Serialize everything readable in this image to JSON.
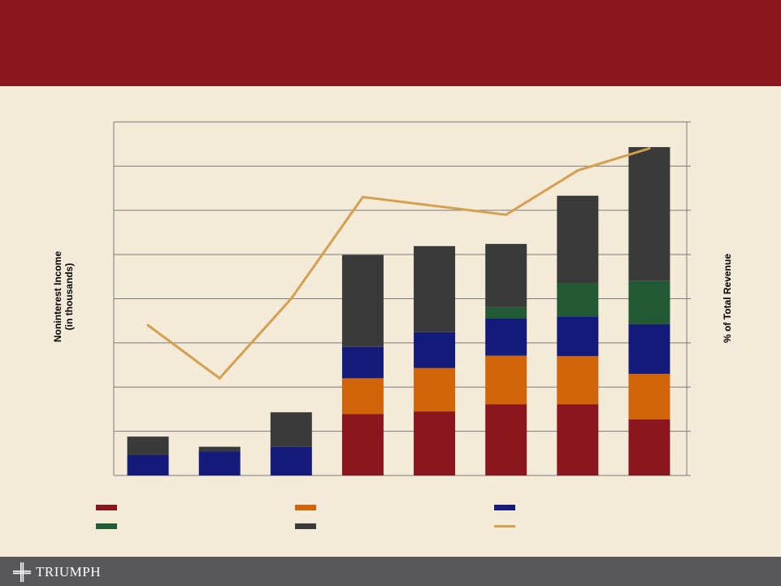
{
  "header": {
    "title": ""
  },
  "chart_data": {
    "type": "bar",
    "stacked": true,
    "categories": [
      "",
      "",
      "",
      "",
      "",
      "",
      "",
      ""
    ],
    "ylabel": "Noninterest Income\n(in thousands)",
    "y2label": "% of Total Revenue",
    "grid": true,
    "legend_position": "bottom",
    "series": [
      {
        "color": "#8b161d",
        "values": [
          0,
          0,
          0,
          1.39,
          1.45,
          1.61,
          1.61,
          1.27
        ]
      },
      {
        "color": "#d2650a",
        "values": [
          0,
          0,
          0,
          0.81,
          0.98,
          1.1,
          1.09,
          1.03
        ]
      },
      {
        "color": "#141b7a",
        "values": [
          0.46,
          0.55,
          0.65,
          0.71,
          0.81,
          0.84,
          0.9,
          1.12
        ]
      },
      {
        "color": "#215a34",
        "values": [
          0,
          0,
          0,
          0,
          0,
          0.26,
          0.75,
          0.98
        ]
      },
      {
        "color": "#3a3a3a",
        "values": [
          0.42,
          0.1,
          0.78,
          2.08,
          1.95,
          1.43,
          1.98,
          3.03
        ]
      }
    ],
    "line": {
      "color": "#d4a050",
      "axis": "secondary",
      "values": [
        3.4,
        2.2,
        4.0,
        6.3,
        6.1,
        5.9,
        6.9,
        7.4
      ]
    },
    "ylim": [
      0,
      8
    ],
    "y2lim": [
      0,
      8
    ]
  },
  "legend": {
    "items": [
      {
        "name": "legend-item-series-1",
        "color": "#8b161d",
        "label": ""
      },
      {
        "name": "legend-item-series-2",
        "color": "#d2650a",
        "label": ""
      },
      {
        "name": "legend-item-series-3",
        "color": "#141b7a",
        "label": ""
      },
      {
        "name": "legend-item-series-4",
        "color": "#215a34",
        "label": ""
      },
      {
        "name": "legend-item-series-5",
        "color": "#3a3a3a",
        "label": ""
      },
      {
        "name": "legend-item-line",
        "color": "#d4a050",
        "label": ""
      }
    ]
  },
  "footer": {
    "logo_text": "TRIUMPH"
  }
}
